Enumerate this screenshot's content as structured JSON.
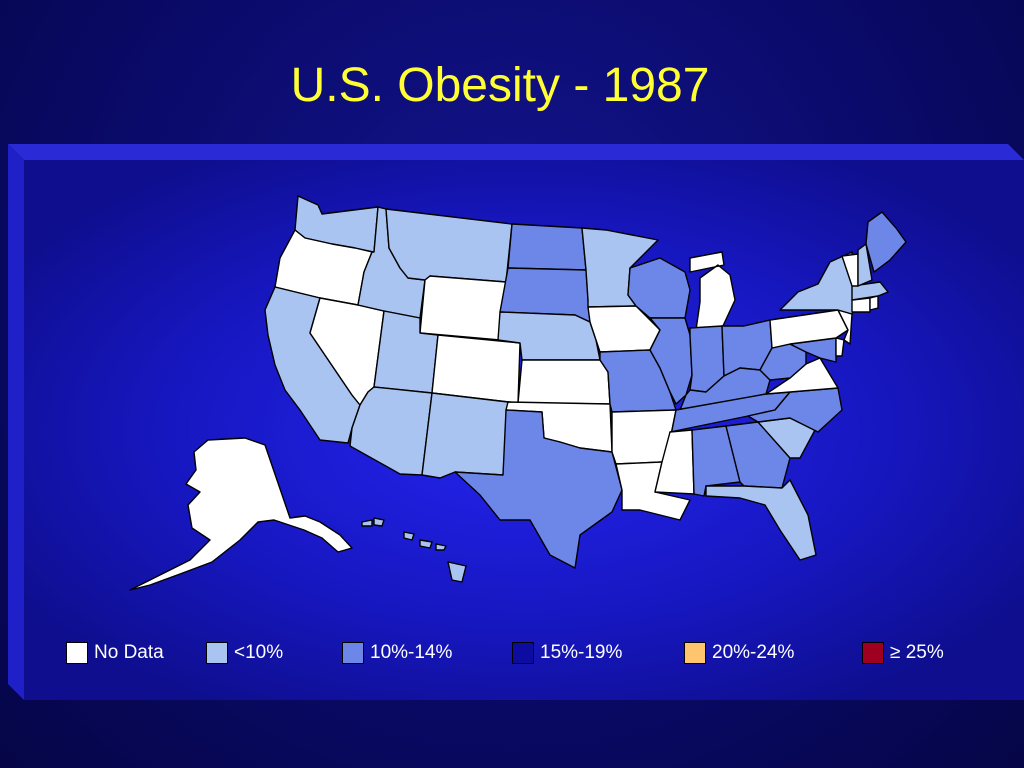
{
  "title": "U.S. Obesity - 1987",
  "colors": {
    "no_data": "#ffffff",
    "lt10": "#a9c4f0",
    "p10_14": "#6d87e8",
    "p15_19": "#0c0ca0",
    "p20_24": "#ffc56e",
    "ge25": "#a00020"
  },
  "legend": [
    {
      "label": "No Data",
      "color": "#ffffff"
    },
    {
      "label": "<10%",
      "color": "#a9c4f0"
    },
    {
      "label": "10%-14%",
      "color": "#6d87e8"
    },
    {
      "label": "15%-19%",
      "color": "#0c0ca0"
    },
    {
      "label": "20%-24%",
      "color": "#ffc56e"
    },
    {
      "label": "≥ 25%",
      "color": "#a00020"
    }
  ],
  "state_categories": {
    "washington": "lt10",
    "oregon": "no_data",
    "california": "lt10",
    "nevada": "no_data",
    "idaho": "lt10",
    "montana": "lt10",
    "wyoming": "no_data",
    "utah": "lt10",
    "arizona": "lt10",
    "new_mexico": "lt10",
    "colorado": "no_data",
    "north_dakota": "p10_14",
    "south_dakota": "p10_14",
    "nebraska": "lt10",
    "kansas": "no_data",
    "oklahoma": "no_data",
    "texas": "p10_14",
    "minnesota": "lt10",
    "iowa": "no_data",
    "missouri": "p10_14",
    "arkansas": "no_data",
    "louisiana": "no_data",
    "wisconsin": "p10_14",
    "illinois": "p10_14",
    "michigan": "no_data",
    "indiana": "p10_14",
    "ohio": "p10_14",
    "kentucky": "p10_14",
    "tennessee": "p10_14",
    "mississippi": "no_data",
    "alabama": "p10_14",
    "georgia": "p10_14",
    "florida": "lt10",
    "south_carolina": "lt10",
    "north_carolina": "p10_14",
    "virginia": "no_data",
    "west_virginia": "p10_14",
    "maryland": "p10_14",
    "delaware": "no_data",
    "new_jersey": "no_data",
    "pennsylvania": "no_data",
    "new_york": "lt10",
    "connecticut": "no_data",
    "rhode_island": "no_data",
    "massachusetts": "lt10",
    "vermont": "no_data",
    "new_hampshire": "lt10",
    "maine": "p10_14",
    "alaska": "no_data",
    "hawaii": "lt10"
  }
}
